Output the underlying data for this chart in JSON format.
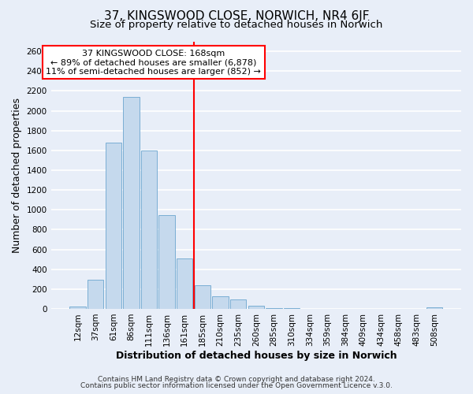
{
  "title": "37, KINGSWOOD CLOSE, NORWICH, NR4 6JF",
  "subtitle": "Size of property relative to detached houses in Norwich",
  "xlabel": "Distribution of detached houses by size in Norwich",
  "ylabel": "Number of detached properties",
  "bin_labels": [
    "12sqm",
    "37sqm",
    "61sqm",
    "86sqm",
    "111sqm",
    "136sqm",
    "161sqm",
    "185sqm",
    "210sqm",
    "235sqm",
    "260sqm",
    "285sqm",
    "310sqm",
    "334sqm",
    "359sqm",
    "384sqm",
    "409sqm",
    "434sqm",
    "458sqm",
    "483sqm",
    "508sqm"
  ],
  "bar_heights": [
    20,
    295,
    1675,
    2140,
    1600,
    950,
    510,
    240,
    125,
    95,
    30,
    10,
    5,
    3,
    2,
    2,
    1,
    1,
    1,
    0,
    15
  ],
  "bar_color": "#c5d9ed",
  "bar_edge_color": "#7aaed4",
  "vline_x_index": 6.5,
  "vline_color": "red",
  "annotation_title": "37 KINGSWOOD CLOSE: 168sqm",
  "annotation_line1": "← 89% of detached houses are smaller (6,878)",
  "annotation_line2": "11% of semi-detached houses are larger (852) →",
  "annotation_box_edge": "red",
  "ylim": [
    0,
    2700
  ],
  "yticks": [
    0,
    200,
    400,
    600,
    800,
    1000,
    1200,
    1400,
    1600,
    1800,
    2000,
    2200,
    2400,
    2600
  ],
  "footer1": "Contains HM Land Registry data © Crown copyright and database right 2024.",
  "footer2": "Contains public sector information licensed under the Open Government Licence v.3.0.",
  "background_color": "#e8eef8",
  "plot_bg_color": "#e8eef8",
  "grid_color": "#ffffff",
  "title_fontsize": 11,
  "subtitle_fontsize": 9.5,
  "axis_label_fontsize": 9,
  "tick_fontsize": 7.5,
  "annotation_fontsize": 8,
  "footer_fontsize": 6.5
}
